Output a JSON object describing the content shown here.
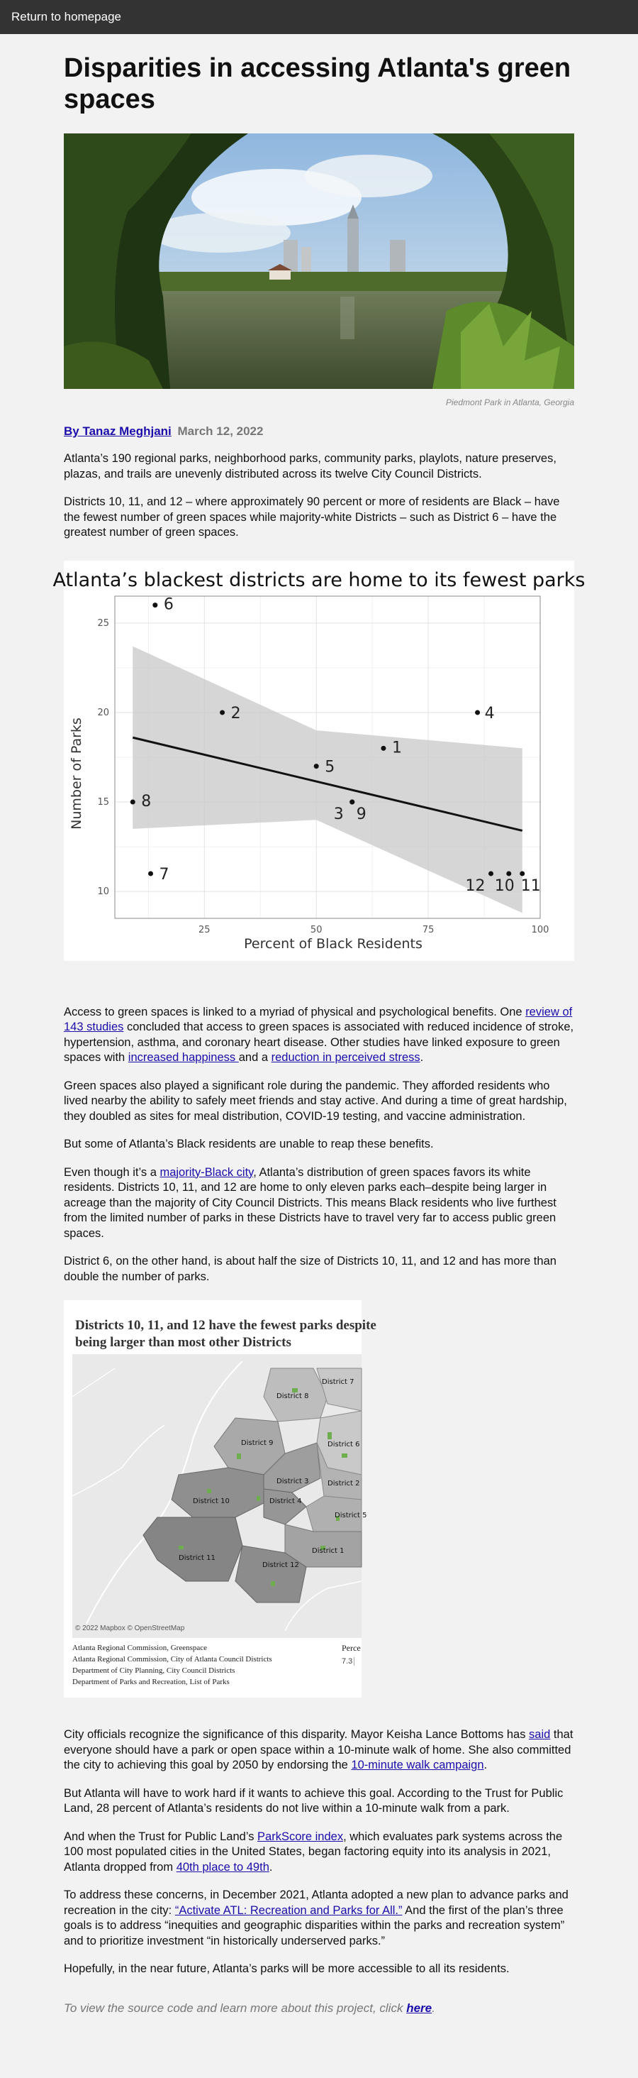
{
  "nav": {
    "return_label": "Return to homepage"
  },
  "article": {
    "title": "Disparities in accessing Atlanta's green spaces",
    "photo_caption": "Piedmont Park in Atlanta, Georgia",
    "author": "By Tanaz Meghjani",
    "date": "March 12, 2022"
  },
  "paragraphs": {
    "p1": "Atlanta’s 190 regional parks, neighborhood parks, community parks, playlots, nature preserves, plazas, and trails are unevenly distributed across its twelve City Council Districts.",
    "p2": "Districts 10, 11, and 12 – where approximately 90 percent or more of residents are Black – have the fewest number of green spaces while majority-white Districts – such as District 6 – have the greatest number of green spaces.",
    "p3_a": "Access to green spaces is linked to a myriad of physical and psychological benefits. One ",
    "p3_link1": "review of 143 studies",
    "p3_b": " concluded that access to green spaces is associated with reduced incidence of stroke, hypertension, asthma, and coronary heart disease. Other studies have linked exposure to green spaces with ",
    "p3_link2": "increased happiness ",
    "p3_c": "and a ",
    "p3_link3": "reduction in perceived stress",
    "p3_d": ".",
    "p4": "Green spaces also played a significant role during the pandemic. They afforded residents who lived nearby the ability to safely meet friends and stay active. And during a time of great hardship, they doubled as sites for meal distribution, COVID-19 testing, and vaccine administration.",
    "p5": "But some of Atlanta’s Black residents are unable to reap these benefits.",
    "p6_a": "Even though it’s a ",
    "p6_link": "majority-Black city",
    "p6_b": ", Atlanta’s distribution of green spaces favors its white residents. Districts 10, 11, and 12 are home to only eleven parks each–despite being larger in acreage than the majority of City Council Districts. This means Black residents who live furthest from the limited number of parks in these Districts have to travel very far to access public green spaces.",
    "p7": "District 6, on the other hand, is about half the size of Districts 10, 11, and 12 and has more than double the number of parks.",
    "p8_a": "City officials recognize the significance of this disparity. Mayor Keisha Lance Bottoms has ",
    "p8_link1": "said",
    "p8_b": " that everyone should have a park or open space within a 10-minute walk of home. She also committed the city to achieving this goal by 2050 by endorsing the ",
    "p8_link2": "10-minute walk campaign",
    "p8_c": ".",
    "p9": "But Atlanta will have to work hard if it wants to achieve this goal. According to the Trust for Public Land, 28 percent of Atlanta’s residents do not live within a 10-minute walk from a park.",
    "p10_a": "And when the Trust for Public Land’s ",
    "p10_link1": "ParkScore index",
    "p10_b": ", which evaluates park systems across the 100 most populated cities in the United States, began factoring equity into its analysis in 2021, Atlanta dropped from ",
    "p10_link2": "40th place to 49th",
    "p10_c": ".",
    "p11_a": "To address these concerns, in December 2021, Atlanta adopted a new plan to advance parks and recreation in the city: ",
    "p11_link": "“Activate ATL: Recreation and Parks for All.”",
    "p11_b": " And the first of the plan’s three goals is to address “inequities and geographic disparities within the parks and recreation system” and to prioritize investment “in historically underserved parks.”",
    "p12": "Hopefully, in the near future, Atlanta’s parks will be more accessible to all its residents."
  },
  "footer": {
    "text": "To view the source code and learn more about this project, click ",
    "link": "here",
    "end": "."
  },
  "chart_data": {
    "type": "scatter",
    "title": "Atlanta’s blackest districts are home to its fewest parks",
    "xlabel": "Percent of Black Residents",
    "ylabel": "Number of Parks",
    "xlim": [
      5,
      100
    ],
    "ylim": [
      8.5,
      26.5
    ],
    "xticks": [
      25,
      50,
      75,
      100
    ],
    "yticks": [
      10,
      15,
      20,
      25
    ],
    "grid": true,
    "points": [
      {
        "label": "1",
        "x": 65,
        "y": 18
      },
      {
        "label": "2",
        "x": 29,
        "y": 20
      },
      {
        "label": "3",
        "x": 58,
        "y": 15
      },
      {
        "label": "4",
        "x": 86,
        "y": 20
      },
      {
        "label": "5",
        "x": 50,
        "y": 17
      },
      {
        "label": "6",
        "x": 14,
        "y": 26
      },
      {
        "label": "7",
        "x": 13,
        "y": 11
      },
      {
        "label": "8",
        "x": 9,
        "y": 15
      },
      {
        "label": "9",
        "x": 58,
        "y": 15
      },
      {
        "label": "10",
        "x": 93,
        "y": 11
      },
      {
        "label": "11",
        "x": 96,
        "y": 11
      },
      {
        "label": "12",
        "x": 89,
        "y": 11
      }
    ],
    "trend": {
      "x": [
        9,
        96
      ],
      "y": [
        18.6,
        13.4
      ]
    },
    "band_upper": {
      "x": [
        9,
        50,
        96
      ],
      "y": [
        23.7,
        19.0,
        18.0
      ]
    },
    "band_lower": {
      "x": [
        9,
        50,
        96
      ],
      "y": [
        13.5,
        14.0,
        8.8
      ]
    }
  },
  "map": {
    "title": "Districts 10, 11, and 12 have the fewest parks despite being larger than most other Districts",
    "credit": "© 2022 Mapbox  © OpenStreetMap",
    "sources": [
      "Atlanta Regional Commission, Greenspace",
      "Atlanta Regional Commission, City of Atlanta Council Districts",
      "Department of City Planning, City Council Districts",
      "Department of Parks and Recreation, List of Parks"
    ],
    "percent_label": "Perce",
    "percent_value": "7.3",
    "district_labels": [
      "District 8",
      "District 7",
      "District 9",
      "District 6",
      "District 3",
      "District 2",
      "District 10",
      "District 4",
      "District 5",
      "District 1",
      "District 11",
      "District 12"
    ]
  }
}
